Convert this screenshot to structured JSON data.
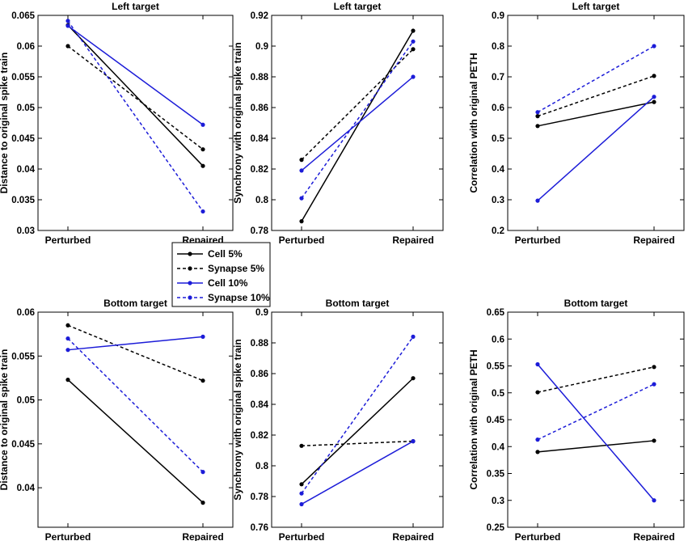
{
  "colors": {
    "black": "#000000",
    "blue": "#1c1cd8"
  },
  "legend": [
    {
      "name": "Cell 5%",
      "color": "#000000",
      "dashed": false
    },
    {
      "name": "Synapse 5%",
      "color": "#000000",
      "dashed": true
    },
    {
      "name": "Cell 10%",
      "color": "#1c1cd8",
      "dashed": false
    },
    {
      "name": "Synapse 10%",
      "color": "#1c1cd8",
      "dashed": true
    }
  ],
  "chart_data": [
    {
      "type": "line",
      "title": "Left target",
      "categories": [
        "Perturbed",
        "Repaired"
      ],
      "ylabel": "Distance to original spike train",
      "ylim": [
        0.03,
        0.065
      ],
      "yticks": [
        "0.03",
        "0.035",
        "0.04",
        "0.045",
        "0.05",
        "0.055",
        "0.06",
        "0.065"
      ],
      "series": [
        {
          "name": "Cell 5%",
          "values": [
            0.0634,
            0.0405
          ]
        },
        {
          "name": "Synapse 5%",
          "values": [
            0.06,
            0.0432
          ]
        },
        {
          "name": "Cell 10%",
          "values": [
            0.0633,
            0.0472
          ]
        },
        {
          "name": "Synapse 10%",
          "values": [
            0.0641,
            0.0331
          ]
        }
      ]
    },
    {
      "type": "line",
      "title": "Left target",
      "categories": [
        "Perturbed",
        "Repaired"
      ],
      "ylabel": "Synchrony with original spike train",
      "ylim": [
        0.78,
        0.92
      ],
      "yticks": [
        "0.78",
        "0.8",
        "0.82",
        "0.84",
        "0.86",
        "0.88",
        "0.9",
        "0.92"
      ],
      "series": [
        {
          "name": "Cell 5%",
          "values": [
            0.786,
            0.91
          ]
        },
        {
          "name": "Synapse 5%",
          "values": [
            0.826,
            0.898
          ]
        },
        {
          "name": "Cell 10%",
          "values": [
            0.819,
            0.88
          ]
        },
        {
          "name": "Synapse 10%",
          "values": [
            0.801,
            0.903
          ]
        }
      ]
    },
    {
      "type": "line",
      "title": "Left target",
      "categories": [
        "Perturbed",
        "Repaired"
      ],
      "ylabel": "Correlation with original PETH",
      "ylim": [
        0.2,
        0.9
      ],
      "yticks": [
        "0.2",
        "0.3",
        "0.4",
        "0.5",
        "0.6",
        "0.7",
        "0.8",
        "0.9"
      ],
      "series": [
        {
          "name": "Cell 5%",
          "values": [
            0.54,
            0.618
          ]
        },
        {
          "name": "Synapse 5%",
          "values": [
            0.572,
            0.703
          ]
        },
        {
          "name": "Cell 10%",
          "values": [
            0.297,
            0.635
          ]
        },
        {
          "name": "Synapse 10%",
          "values": [
            0.585,
            0.8
          ]
        }
      ]
    },
    {
      "type": "line",
      "title": "Bottom target",
      "categories": [
        "Perturbed",
        "Repaired"
      ],
      "ylabel": "Distance to original spike train",
      "ylim": [
        0.0355,
        0.06
      ],
      "yticks": [
        "0.04",
        "0.045",
        "0.05",
        "0.055",
        "0.06"
      ],
      "series": [
        {
          "name": "Cell 5%",
          "values": [
            0.0523,
            0.0383
          ]
        },
        {
          "name": "Synapse 5%",
          "values": [
            0.0585,
            0.0522
          ]
        },
        {
          "name": "Cell 10%",
          "values": [
            0.0557,
            0.0572
          ]
        },
        {
          "name": "Synapse 10%",
          "values": [
            0.057,
            0.0418
          ]
        }
      ]
    },
    {
      "type": "line",
      "title": "Bottom target",
      "categories": [
        "Perturbed",
        "Repaired"
      ],
      "ylabel": "Synchrony with original spike train",
      "ylim": [
        0.76,
        0.9
      ],
      "yticks": [
        "0.76",
        "0.78",
        "0.8",
        "0.82",
        "0.84",
        "0.86",
        "0.88",
        "0.9"
      ],
      "series": [
        {
          "name": "Cell 5%",
          "values": [
            0.788,
            0.857
          ]
        },
        {
          "name": "Synapse 5%",
          "values": [
            0.813,
            0.816
          ]
        },
        {
          "name": "Cell 10%",
          "values": [
            0.775,
            0.816
          ]
        },
        {
          "name": "Synapse 10%",
          "values": [
            0.782,
            0.884
          ]
        }
      ]
    },
    {
      "type": "line",
      "title": "Bottom target",
      "categories": [
        "Perturbed",
        "Repaired"
      ],
      "ylabel": "Correlation with original PETH",
      "ylim": [
        0.25,
        0.65
      ],
      "yticks": [
        "0.25",
        "0.3",
        "0.35",
        "0.4",
        "0.45",
        "0.5",
        "0.55",
        "0.6",
        "0.65"
      ],
      "series": [
        {
          "name": "Cell 5%",
          "values": [
            0.39,
            0.411
          ]
        },
        {
          "name": "Synapse 5%",
          "values": [
            0.501,
            0.548
          ]
        },
        {
          "name": "Cell 10%",
          "values": [
            0.553,
            0.3
          ]
        },
        {
          "name": "Synapse 10%",
          "values": [
            0.413,
            0.516
          ]
        }
      ]
    }
  ]
}
